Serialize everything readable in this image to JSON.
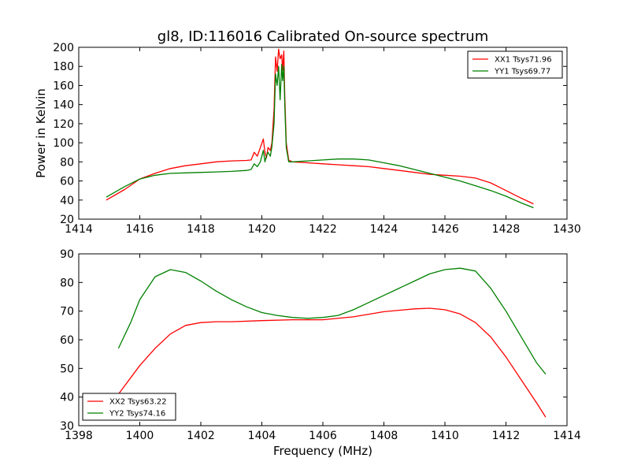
{
  "chart_data": [
    {
      "type": "line",
      "title": "gl8, ID:116016 Calibrated On-source spectrum",
      "xlabel": "",
      "ylabel": "Power in Kelvin",
      "xlim": [
        1414,
        1430
      ],
      "ylim": [
        20,
        200
      ],
      "xticks": [
        "1414",
        "1416",
        "1418",
        "1420",
        "1422",
        "1424",
        "1426",
        "1428",
        "1430"
      ],
      "yticks": [
        "20",
        "40",
        "60",
        "80",
        "100",
        "120",
        "140",
        "160",
        "180",
        "200"
      ],
      "legend_position": "top-right",
      "series": [
        {
          "name": "XX1 Tsys71.96",
          "color": "#ff0000",
          "x": [
            1414.9,
            1415.5,
            1416,
            1416.5,
            1417,
            1417.5,
            1418,
            1418.5,
            1419,
            1419.5,
            1419.65,
            1419.75,
            1419.85,
            1419.95,
            1420.05,
            1420.1,
            1420.15,
            1420.2,
            1420.28,
            1420.33,
            1420.4,
            1420.45,
            1420.5,
            1420.55,
            1420.6,
            1420.65,
            1420.68,
            1420.72,
            1420.75,
            1420.8,
            1420.88,
            1421,
            1421.5,
            1422,
            1422.5,
            1423,
            1423.5,
            1424,
            1424.5,
            1425,
            1425.5,
            1426,
            1426.5,
            1427,
            1427.5,
            1428,
            1428.5,
            1428.9
          ],
          "y": [
            40,
            51,
            62,
            68,
            73,
            76,
            78,
            80,
            81,
            81.5,
            82,
            90,
            86,
            95,
            104,
            90,
            84,
            95,
            92,
            100,
            135,
            190,
            175,
            198,
            188,
            192,
            176,
            196,
            150,
            100,
            82,
            80,
            79,
            78,
            77,
            76,
            75,
            73,
            71,
            69,
            67,
            66,
            65,
            63,
            58,
            50,
            42,
            36
          ]
        },
        {
          "name": "YY1 Tsys69.77",
          "color": "#008000",
          "x": [
            1414.9,
            1415.5,
            1416,
            1416.5,
            1417,
            1417.5,
            1418,
            1418.5,
            1419,
            1419.5,
            1419.65,
            1419.75,
            1419.85,
            1419.95,
            1420.05,
            1420.1,
            1420.15,
            1420.2,
            1420.28,
            1420.33,
            1420.4,
            1420.45,
            1420.5,
            1420.55,
            1420.6,
            1420.65,
            1420.68,
            1420.72,
            1420.75,
            1420.8,
            1420.88,
            1421,
            1421.5,
            1422,
            1422.5,
            1423,
            1423.5,
            1424,
            1424.5,
            1425,
            1425.5,
            1426,
            1426.5,
            1427,
            1427.5,
            1428,
            1428.5,
            1428.9
          ],
          "y": [
            43,
            54,
            62,
            66,
            68,
            68.5,
            69,
            69.5,
            70,
            71,
            72,
            78,
            75,
            80,
            92,
            80,
            86,
            90,
            86,
            96,
            120,
            172,
            160,
            180,
            145,
            182,
            165,
            180,
            140,
            95,
            80,
            80,
            81,
            82,
            83,
            83,
            82,
            79,
            76,
            72,
            68,
            64,
            60,
            55,
            50,
            44,
            37,
            32
          ]
        }
      ]
    },
    {
      "type": "line",
      "title": "",
      "xlabel": "Frequency (MHz)",
      "ylabel": "",
      "xlim": [
        1398,
        1414
      ],
      "ylim": [
        30,
        90
      ],
      "xticks": [
        "1398",
        "1400",
        "1402",
        "1404",
        "1406",
        "1408",
        "1410",
        "1412",
        "1414"
      ],
      "yticks": [
        "30",
        "40",
        "50",
        "60",
        "70",
        "80",
        "90"
      ],
      "legend_position": "bottom-left",
      "series": [
        {
          "name": "XX2 Tsys63.22",
          "color": "#ff0000",
          "x": [
            1399.3,
            1400,
            1400.5,
            1401,
            1401.5,
            1402,
            1402.5,
            1403,
            1404,
            1405,
            1406,
            1407,
            1408,
            1409,
            1409.5,
            1410,
            1410.5,
            1411,
            1411.5,
            1412,
            1412.5,
            1413,
            1413.3
          ],
          "y": [
            41,
            51,
            57,
            62,
            65,
            66,
            66.3,
            66.3,
            66.7,
            67,
            67,
            68,
            69.8,
            70.8,
            71,
            70.5,
            69,
            66,
            61,
            54,
            46,
            38,
            33
          ]
        },
        {
          "name": "YY2 Tsys74.16",
          "color": "#008000",
          "x": [
            1399.3,
            1399.7,
            1400,
            1400.5,
            1401,
            1401.5,
            1402,
            1402.5,
            1403,
            1403.5,
            1404,
            1404.5,
            1405,
            1405.5,
            1406,
            1406.5,
            1407,
            1407.5,
            1408,
            1408.5,
            1409,
            1409.5,
            1410,
            1410.5,
            1411,
            1411.5,
            1412,
            1412.5,
            1413,
            1413.3
          ],
          "y": [
            57,
            66,
            74,
            82,
            84.5,
            83.5,
            80.5,
            77,
            74,
            71.5,
            69.5,
            68.5,
            67.8,
            67.5,
            67.8,
            68.5,
            70.5,
            73,
            75.5,
            78,
            80.5,
            83,
            84.5,
            85,
            84,
            78,
            70,
            61,
            52,
            48
          ]
        }
      ]
    }
  ]
}
